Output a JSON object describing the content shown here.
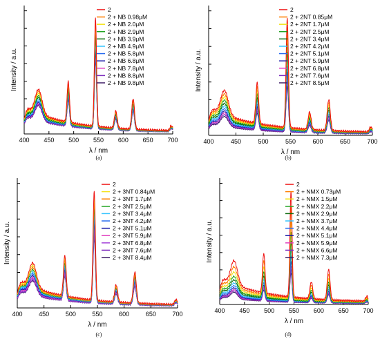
{
  "chart_data": [
    {
      "panel": "(a)",
      "type": "line",
      "xlabel": "λ / nm",
      "ylabel": "Intensity / a.u.",
      "xlim": [
        400,
        700
      ],
      "xticks": [
        "400",
        "450",
        "500",
        "550",
        "600",
        "650",
        "700"
      ],
      "legend_position": "top-right",
      "peaks_nm": [
        429,
        489,
        544,
        585,
        620,
        697
      ],
      "series": [
        {
          "name": "2",
          "color": "#ee1111",
          "relative_intensity": 1.0
        },
        {
          "name": "2 + NB 0.98μM",
          "color": "#ff7f00",
          "relative_intensity": 0.96
        },
        {
          "name": "2 + NB 2.0μM",
          "color": "#f4e21a",
          "relative_intensity": 0.91
        },
        {
          "name": "2 + NB 2.9μM",
          "color": "#19a019",
          "relative_intensity": 0.86
        },
        {
          "name": "2 + NB 3.9μM",
          "color": "#0b6b0b",
          "relative_intensity": 0.82
        },
        {
          "name": "2 + NB 4.9μM",
          "color": "#33c4ff",
          "relative_intensity": 0.78
        },
        {
          "name": "2 + NB 5.8μM",
          "color": "#2a6df0",
          "relative_intensity": 0.74
        },
        {
          "name": "2 + NB 6.8μM",
          "color": "#1a1aa8",
          "relative_intensity": 0.71
        },
        {
          "name": "2 + NB 7.8μM",
          "color": "#e03fbf",
          "relative_intensity": 0.68
        },
        {
          "name": "2 + NB 8.8μM",
          "color": "#7f2fbf",
          "relative_intensity": 0.66
        },
        {
          "name": "2 + NB 9.8μM",
          "color": "#3d1a66",
          "relative_intensity": 0.64
        }
      ]
    },
    {
      "panel": "(b)",
      "type": "line",
      "xlabel": "λ / nm",
      "ylabel": "Intensity / a.u.",
      "xlim": [
        400,
        700
      ],
      "xticks": [
        "400",
        "450",
        "500",
        "550",
        "600",
        "650",
        "700"
      ],
      "legend_position": "top-right",
      "peaks_nm": [
        429,
        489,
        544,
        585,
        620,
        697
      ],
      "series": [
        {
          "name": "2",
          "color": "#ee1111",
          "relative_intensity": 1.0
        },
        {
          "name": "2 + 2NT 0.85μM",
          "color": "#ff7f00",
          "relative_intensity": 0.92
        },
        {
          "name": "2 + 2NT 1.7μM",
          "color": "#f4e21a",
          "relative_intensity": 0.85
        },
        {
          "name": "2 + 2NT 2.5μM",
          "color": "#19a019",
          "relative_intensity": 0.78
        },
        {
          "name": "2 + 2NT 3.4μM",
          "color": "#0b6b0b",
          "relative_intensity": 0.71
        },
        {
          "name": "2 + 2NT 4.2μM",
          "color": "#33c4ff",
          "relative_intensity": 0.65
        },
        {
          "name": "2 + 2NT 5.1μM",
          "color": "#2a6df0",
          "relative_intensity": 0.59
        },
        {
          "name": "2 + 2NT 5.9μM",
          "color": "#1a1aa8",
          "relative_intensity": 0.54
        },
        {
          "name": "2 + 2NT 6.8μM",
          "color": "#e03fbf",
          "relative_intensity": 0.5
        },
        {
          "name": "2 + 2NT 7.6μM",
          "color": "#7f2fbf",
          "relative_intensity": 0.46
        },
        {
          "name": "2 + 2NT 8.5μM",
          "color": "#3d1a66",
          "relative_intensity": 0.42
        }
      ]
    },
    {
      "panel": "(c)",
      "type": "line",
      "xlabel": "λ / nm",
      "ylabel": "Intensity / a.u.",
      "xlim": [
        400,
        700
      ],
      "xticks": [
        "400",
        "450",
        "500",
        "550",
        "600",
        "650",
        "700"
      ],
      "legend_position": "top-right",
      "peaks_nm": [
        429,
        489,
        544,
        585,
        620,
        697
      ],
      "series": [
        {
          "name": "2",
          "color": "#ee1111",
          "relative_intensity": 1.0
        },
        {
          "name": "2 + 3NT 0.84μM",
          "color": "#f4e21a",
          "relative_intensity": 0.95
        },
        {
          "name": "2 + 3NT 1.7μM",
          "color": "#ff7f00",
          "relative_intensity": 0.9
        },
        {
          "name": "2 + 3NT 2.5μM",
          "color": "#19a019",
          "relative_intensity": 0.85
        },
        {
          "name": "2 + 3NT 3.4μM",
          "color": "#33c4ff",
          "relative_intensity": 0.8
        },
        {
          "name": "2 + 3NT 4.2μM",
          "color": "#2a6df0",
          "relative_intensity": 0.76
        },
        {
          "name": "2 + 3NT 5.1μM",
          "color": "#1a1aa8",
          "relative_intensity": 0.72
        },
        {
          "name": "2 + 3NT 5.9μM",
          "color": "#e03fbf",
          "relative_intensity": 0.68
        },
        {
          "name": "2 + 3NT 6.8μM",
          "color": "#a23fd8",
          "relative_intensity": 0.65
        },
        {
          "name": "2 + 3NT 7.6μM",
          "color": "#7f2fbf",
          "relative_intensity": 0.62
        },
        {
          "name": "2 + 3NT 8.4μM",
          "color": "#3d1a66",
          "relative_intensity": 0.6
        }
      ]
    },
    {
      "panel": "(d)",
      "type": "line",
      "xlabel": "λ / nm",
      "ylabel": "Intensity / a.u.",
      "xlim": [
        400,
        700
      ],
      "xticks": [
        "400",
        "450",
        "500",
        "550",
        "600",
        "650",
        "700"
      ],
      "legend_position": "top-right",
      "peaks_nm": [
        429,
        489,
        544,
        585,
        620,
        697
      ],
      "series": [
        {
          "name": "2",
          "color": "#ee1111",
          "relative_intensity": 1.0
        },
        {
          "name": "2 + NMX 0.73μM",
          "color": "#ff7f00",
          "relative_intensity": 0.86
        },
        {
          "name": "2 + NMX 1.5μM",
          "color": "#f4e21a",
          "relative_intensity": 0.74
        },
        {
          "name": "2 + NMX 2.2μM",
          "color": "#19a019",
          "relative_intensity": 0.64
        },
        {
          "name": "2 + NMX 2.9μM",
          "color": "#0b6b0b",
          "relative_intensity": 0.56
        },
        {
          "name": "2 + NMX 3.7μM",
          "color": "#33c4ff",
          "relative_intensity": 0.49
        },
        {
          "name": "2 + NMX 4.4μM",
          "color": "#2a6df0",
          "relative_intensity": 0.43
        },
        {
          "name": "2 + NMX 5.1μM",
          "color": "#1a1aa8",
          "relative_intensity": 0.38
        },
        {
          "name": "2 + NMX 5.9μM",
          "color": "#e03fbf",
          "relative_intensity": 0.34
        },
        {
          "name": "2 + NMX 6.6μM",
          "color": "#7f2fbf",
          "relative_intensity": 0.31
        },
        {
          "name": "2 + NMX 7.3μM",
          "color": "#3d1a66",
          "relative_intensity": 0.28
        }
      ]
    }
  ]
}
